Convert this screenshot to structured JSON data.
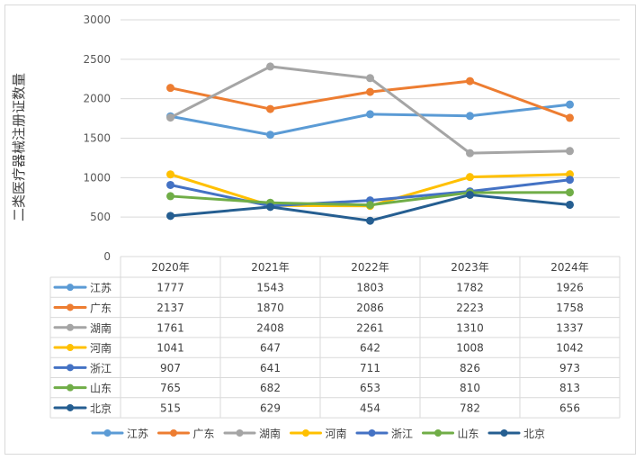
{
  "chart_data": {
    "type": "line",
    "title": "",
    "xlabel": "",
    "ylabel": "二类医疗器械注册证数量",
    "ylim": [
      0,
      3000
    ],
    "yticks": [
      "0",
      "500",
      "1000",
      "1500",
      "2000",
      "2500",
      "3000"
    ],
    "grid": true,
    "legend": "bottom",
    "data_table": true,
    "categories": [
      "2020年",
      "2021年",
      "2022年",
      "2023年",
      "2024年"
    ],
    "series": [
      {
        "name": "江苏",
        "color": "#5B9BD5",
        "values": [
          1777,
          1543,
          1803,
          1782,
          1926
        ]
      },
      {
        "name": "广东",
        "color": "#ED7D31",
        "values": [
          2137,
          1870,
          2086,
          2223,
          1758
        ]
      },
      {
        "name": "湖南",
        "color": "#A5A5A5",
        "values": [
          1761,
          2408,
          2261,
          1310,
          1337
        ]
      },
      {
        "name": "河南",
        "color": "#FFC000",
        "values": [
          1041,
          647,
          642,
          1008,
          1042
        ]
      },
      {
        "name": "浙江",
        "color": "#4472C4",
        "values": [
          907,
          641,
          711,
          826,
          973
        ]
      },
      {
        "name": "山东",
        "color": "#70AD47",
        "values": [
          765,
          682,
          653,
          810,
          813
        ]
      },
      {
        "name": "北京",
        "color": "#255E91",
        "values": [
          515,
          629,
          454,
          782,
          656
        ]
      }
    ]
  }
}
